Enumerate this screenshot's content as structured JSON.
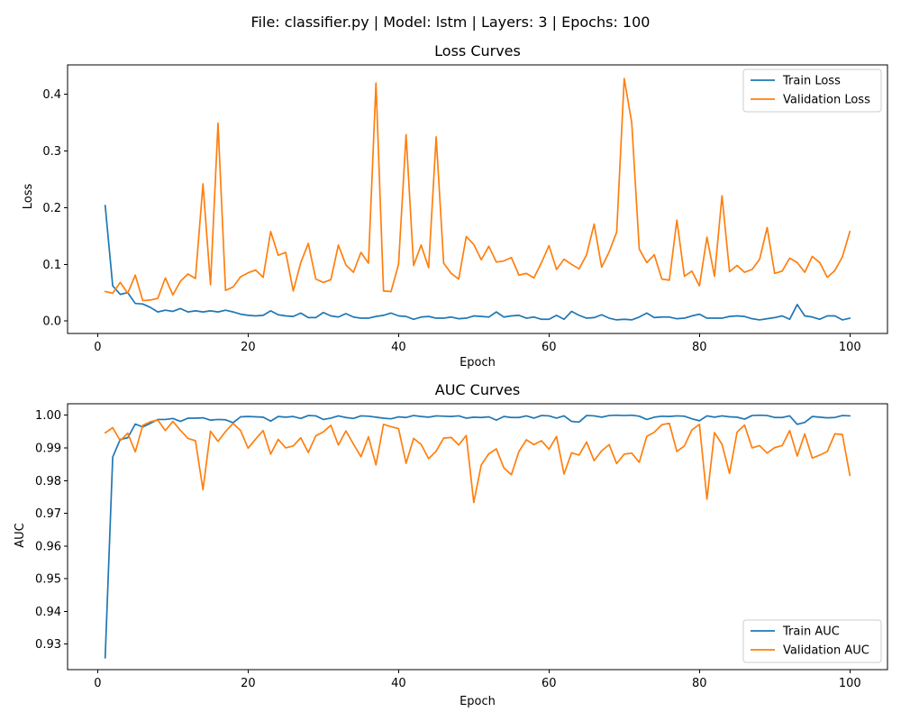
{
  "figure": {
    "suptitle": "File: classifier.py | Model: lstm | Layers: 3 | Epochs: 100"
  },
  "colors": {
    "train": "#1f77b4",
    "validation": "#ff7f0e"
  },
  "chart_data": [
    {
      "type": "line",
      "title": "Loss Curves",
      "xlabel": "Epoch",
      "ylabel": "Loss",
      "xlim": [
        -4,
        105
      ],
      "ylim": [
        -0.022,
        0.452
      ],
      "xticks": [
        0,
        20,
        40,
        60,
        80,
        100
      ],
      "xtick_labels": [
        "0",
        "20",
        "40",
        "60",
        "80",
        "100"
      ],
      "yticks": [
        0.0,
        0.1,
        0.2,
        0.3,
        0.4
      ],
      "ytick_labels": [
        "0.0",
        "0.1",
        "0.2",
        "0.3",
        "0.4"
      ],
      "legend_position": "top-right",
      "grid": false,
      "x_start": 1,
      "series": [
        {
          "name": "Train Loss",
          "color_key": "train",
          "values": [
            0.204,
            0.062,
            0.047,
            0.05,
            0.031,
            0.03,
            0.024,
            0.016,
            0.019,
            0.017,
            0.022,
            0.016,
            0.018,
            0.016,
            0.018,
            0.016,
            0.019,
            0.016,
            0.012,
            0.01,
            0.009,
            0.01,
            0.018,
            0.011,
            0.009,
            0.008,
            0.014,
            0.006,
            0.006,
            0.015,
            0.009,
            0.007,
            0.013,
            0.007,
            0.005,
            0.005,
            0.008,
            0.01,
            0.014,
            0.009,
            0.008,
            0.003,
            0.007,
            0.008,
            0.005,
            0.005,
            0.007,
            0.004,
            0.005,
            0.009,
            0.008,
            0.007,
            0.016,
            0.007,
            0.009,
            0.01,
            0.005,
            0.007,
            0.003,
            0.003,
            0.01,
            0.003,
            0.017,
            0.01,
            0.005,
            0.006,
            0.011,
            0.005,
            0.002,
            0.003,
            0.002,
            0.007,
            0.014,
            0.006,
            0.007,
            0.007,
            0.004,
            0.005,
            0.009,
            0.012,
            0.005,
            0.005,
            0.005,
            0.008,
            0.009,
            0.008,
            0.004,
            0.002,
            0.004,
            0.006,
            0.009,
            0.003,
            0.029,
            0.009,
            0.007,
            0.003,
            0.009,
            0.009,
            0.002,
            0.005
          ]
        },
        {
          "name": "Validation Loss",
          "color_key": "validation",
          "values": [
            0.052,
            0.049,
            0.068,
            0.049,
            0.081,
            0.036,
            0.037,
            0.04,
            0.076,
            0.046,
            0.07,
            0.083,
            0.075,
            0.242,
            0.064,
            0.349,
            0.054,
            0.06,
            0.078,
            0.085,
            0.09,
            0.077,
            0.158,
            0.116,
            0.121,
            0.053,
            0.103,
            0.137,
            0.074,
            0.068,
            0.073,
            0.134,
            0.099,
            0.086,
            0.121,
            0.102,
            0.42,
            0.053,
            0.052,
            0.1,
            0.329,
            0.098,
            0.134,
            0.094,
            0.325,
            0.102,
            0.084,
            0.074,
            0.149,
            0.135,
            0.108,
            0.132,
            0.104,
            0.106,
            0.112,
            0.081,
            0.084,
            0.076,
            0.103,
            0.133,
            0.091,
            0.109,
            0.1,
            0.092,
            0.117,
            0.171,
            0.095,
            0.122,
            0.157,
            0.428,
            0.35,
            0.127,
            0.103,
            0.117,
            0.074,
            0.072,
            0.178,
            0.079,
            0.088,
            0.062,
            0.148,
            0.079,
            0.221,
            0.087,
            0.098,
            0.086,
            0.091,
            0.109,
            0.165,
            0.084,
            0.088,
            0.111,
            0.103,
            0.086,
            0.114,
            0.103,
            0.077,
            0.089,
            0.113,
            0.158
          ]
        }
      ]
    },
    {
      "type": "line",
      "title": "AUC Curves",
      "xlabel": "Epoch",
      "ylabel": "AUC",
      "xlim": [
        -4,
        105
      ],
      "ylim": [
        0.9222,
        1.0035
      ],
      "xticks": [
        0,
        20,
        40,
        60,
        80,
        100
      ],
      "xtick_labels": [
        "0",
        "20",
        "40",
        "60",
        "80",
        "100"
      ],
      "yticks": [
        0.93,
        0.94,
        0.95,
        0.96,
        0.97,
        0.98,
        0.99,
        1.0
      ],
      "ytick_labels": [
        "0.93",
        "0.94",
        "0.95",
        "0.96",
        "0.97",
        "0.98",
        "0.99",
        "1.00"
      ],
      "legend_position": "bottom-right",
      "grid": false,
      "x_start": 1,
      "series": [
        {
          "name": "Train AUC",
          "color_key": "train",
          "values": [
            0.9258,
            0.9872,
            0.9926,
            0.9931,
            0.9973,
            0.9964,
            0.9975,
            0.9987,
            0.9987,
            0.999,
            0.9981,
            0.9991,
            0.9991,
            0.9992,
            0.9985,
            0.9987,
            0.9986,
            0.9977,
            0.9995,
            0.9996,
            0.9995,
            0.9994,
            0.9982,
            0.9996,
            0.9994,
            0.9996,
            0.999,
            0.9999,
            0.9998,
            0.9987,
            0.9991,
            0.9998,
            0.9993,
            0.999,
            0.9998,
            0.9997,
            0.9994,
            0.9991,
            0.9989,
            0.9995,
            0.9993,
            0.9999,
            0.9996,
            0.9994,
            0.9998,
            0.9997,
            0.9996,
            0.9998,
            0.9991,
            0.9994,
            0.9993,
            0.9995,
            0.9985,
            0.9996,
            0.9993,
            0.9993,
            0.9998,
            0.9991,
            0.9999,
            0.9998,
            0.9991,
            0.9998,
            0.9981,
            0.9979,
            0.9999,
            0.9998,
            0.9994,
            0.9999,
            1.0,
            0.9999,
            1.0,
            0.9997,
            0.9987,
            0.9994,
            0.9997,
            0.9996,
            0.9998,
            0.9997,
            0.9989,
            0.9983,
            0.9998,
            0.9994,
            0.9998,
            0.9995,
            0.9994,
            0.9988,
            0.9999,
            1.0,
            0.9999,
            0.9993,
            0.9993,
            0.9998,
            0.9972,
            0.9978,
            0.9996,
            0.9994,
            0.9992,
            0.9993,
            0.9999,
            0.9998
          ]
        },
        {
          "name": "Validation AUC",
          "color_key": "validation",
          "values": [
            0.9946,
            0.9962,
            0.9922,
            0.9945,
            0.9888,
            0.9969,
            0.998,
            0.9985,
            0.9953,
            0.9981,
            0.9954,
            0.9929,
            0.9922,
            0.9772,
            0.9951,
            0.992,
            0.995,
            0.9975,
            0.9953,
            0.9899,
            0.9927,
            0.9953,
            0.9881,
            0.9926,
            0.99,
            0.9906,
            0.9931,
            0.9886,
            0.9937,
            0.9949,
            0.9969,
            0.9909,
            0.9952,
            0.9912,
            0.9873,
            0.9934,
            0.9848,
            0.9972,
            0.9965,
            0.9959,
            0.9853,
            0.9929,
            0.9911,
            0.9867,
            0.989,
            0.993,
            0.9932,
            0.9909,
            0.9938,
            0.9733,
            0.9848,
            0.9882,
            0.9897,
            0.9839,
            0.9818,
            0.9889,
            0.9925,
            0.991,
            0.9922,
            0.9896,
            0.9935,
            0.982,
            0.9885,
            0.9878,
            0.9918,
            0.9861,
            0.9891,
            0.991,
            0.9852,
            0.9881,
            0.9884,
            0.9856,
            0.9935,
            0.9948,
            0.9971,
            0.9975,
            0.9889,
            0.9906,
            0.9955,
            0.9972,
            0.9743,
            0.9947,
            0.9911,
            0.9822,
            0.9948,
            0.997,
            0.99,
            0.9907,
            0.9884,
            0.9901,
            0.9907,
            0.9953,
            0.9875,
            0.9943,
            0.9869,
            0.9878,
            0.9889,
            0.9943,
            0.9941,
            0.9816
          ]
        }
      ]
    }
  ]
}
